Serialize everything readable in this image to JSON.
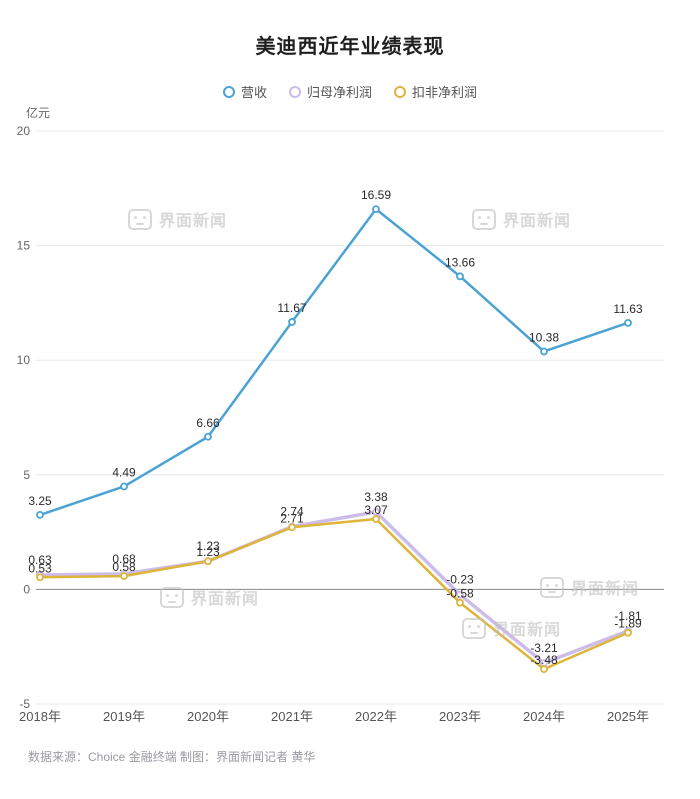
{
  "title": "美迪西近年业绩表现",
  "unit_label": "亿元",
  "footer": "数据来源：Choice 金融终端 制图：界面新闻记者 黄华",
  "watermark_text": "界面新闻",
  "chart_data": {
    "type": "line",
    "title": "美迪西近年业绩表现",
    "categories": [
      "2018年",
      "2019年",
      "2020年",
      "2021年",
      "2022年",
      "2023年",
      "2024年",
      "2025年"
    ],
    "series": [
      {
        "name": "营收",
        "color": "#4BA3D3",
        "values": [
          3.25,
          4.49,
          6.66,
          11.67,
          16.59,
          13.66,
          10.38,
          11.63
        ]
      },
      {
        "name": "归母净利润",
        "color": "#CDBCE9",
        "values": [
          0.63,
          0.68,
          1.23,
          2.74,
          3.38,
          -0.23,
          -3.21,
          -1.81
        ]
      },
      {
        "name": "扣非净利润",
        "color": "#DDB53A",
        "values": [
          0.53,
          0.58,
          1.23,
          2.71,
          3.07,
          -0.58,
          -3.48,
          -1.89
        ]
      }
    ],
    "xlabel": "",
    "ylabel": "亿元",
    "ylim": [
      -5,
      20
    ],
    "yticks": [
      -5,
      0,
      5,
      10,
      15,
      20
    ],
    "grid": true,
    "legend_position": "top"
  }
}
